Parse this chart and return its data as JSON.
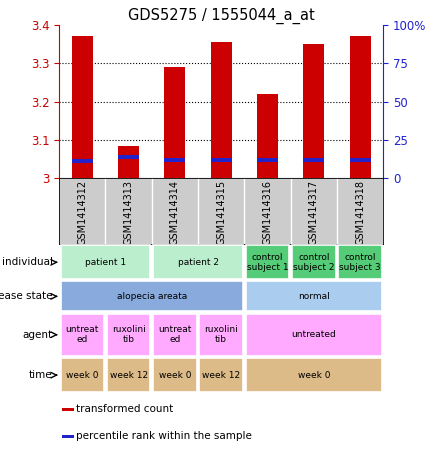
{
  "title": "GDS5275 / 1555044_a_at",
  "samples": [
    "GSM1414312",
    "GSM1414313",
    "GSM1414314",
    "GSM1414315",
    "GSM1414316",
    "GSM1414317",
    "GSM1414318"
  ],
  "bar_values": [
    3.37,
    3.085,
    3.29,
    3.355,
    3.22,
    3.35,
    3.37
  ],
  "blue_values": [
    3.045,
    3.055,
    3.048,
    3.048,
    3.048,
    3.048,
    3.048
  ],
  "ylim": [
    3.0,
    3.4
  ],
  "y2lim": [
    0,
    100
  ],
  "yticks": [
    3.0,
    3.1,
    3.2,
    3.3,
    3.4
  ],
  "y2ticks": [
    0,
    25,
    50,
    75,
    100
  ],
  "bar_color": "#cc0000",
  "blue_color": "#2222cc",
  "individual_cells": [
    {
      "text": "patient 1",
      "span": 2,
      "color": "#bbeecc"
    },
    {
      "text": "patient 2",
      "span": 2,
      "color": "#bbeecc"
    },
    {
      "text": "control\nsubject 1",
      "span": 1,
      "color": "#55cc77"
    },
    {
      "text": "control\nsubject 2",
      "span": 1,
      "color": "#55cc77"
    },
    {
      "text": "control\nsubject 3",
      "span": 1,
      "color": "#55cc77"
    }
  ],
  "disease_cells": [
    {
      "text": "alopecia areata",
      "span": 4,
      "color": "#88aadd"
    },
    {
      "text": "normal",
      "span": 3,
      "color": "#aaccee"
    }
  ],
  "agent_cells": [
    {
      "text": "untreat\ned",
      "span": 1,
      "color": "#ffaaff"
    },
    {
      "text": "ruxolini\ntib",
      "span": 1,
      "color": "#ffaaff"
    },
    {
      "text": "untreat\ned",
      "span": 1,
      "color": "#ffaaff"
    },
    {
      "text": "ruxolini\ntib",
      "span": 1,
      "color": "#ffaaff"
    },
    {
      "text": "untreated",
      "span": 3,
      "color": "#ffaaff"
    }
  ],
  "time_cells": [
    {
      "text": "week 0",
      "span": 1,
      "color": "#ddbb88"
    },
    {
      "text": "week 12",
      "span": 1,
      "color": "#ddbb88"
    },
    {
      "text": "week 0",
      "span": 1,
      "color": "#ddbb88"
    },
    {
      "text": "week 12",
      "span": 1,
      "color": "#ddbb88"
    },
    {
      "text": "week 0",
      "span": 3,
      "color": "#ddbb88"
    }
  ],
  "row_labels": [
    "individual",
    "disease state",
    "agent",
    "time"
  ],
  "legend": [
    {
      "color": "#cc0000",
      "label": "transformed count"
    },
    {
      "color": "#2222cc",
      "label": "percentile rank within the sample"
    }
  ],
  "sample_bg": "#cccccc",
  "fig_bg": "#ffffff"
}
